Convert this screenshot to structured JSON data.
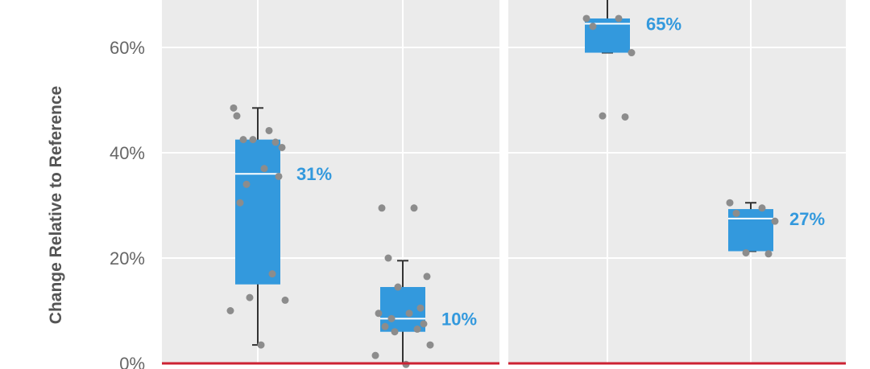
{
  "chart_data": {
    "type": "box",
    "ylabel": "Change Relative to Reference",
    "ylim": [
      0,
      70
    ],
    "yticks": [
      0,
      20,
      40,
      60
    ],
    "ytick_labels": [
      "0%",
      "20%",
      "40%",
      "60%"
    ],
    "grid": true,
    "reference_line": 0,
    "colors": {
      "box": "#3399DD",
      "median": "#FFFFFF",
      "whisker": "#333333",
      "point": "#8C8C8C",
      "label": "#3399DD",
      "reference": "#CC2233",
      "panel_bg": "#EBEBEB",
      "grid": "#FFFFFF"
    },
    "panels": [
      {
        "groups": [
          {
            "label": "31%",
            "q1": 15,
            "median": 36,
            "q3": 42.5,
            "whisker_low": 3.5,
            "whisker_high": 48.5,
            "points": [
              47,
              44.2,
              42.5,
              41,
              42.5,
              42,
              48.5,
              37,
              34,
              35.5,
              30.5,
              17,
              12.5,
              12,
              10,
              3.5
            ]
          },
          {
            "label": "10%",
            "q1": 6,
            "median": 8.5,
            "q3": 14.5,
            "whisker_low": 0,
            "whisker_high": 19.5,
            "points": [
              29.5,
              29.5,
              20,
              16.5,
              14.5,
              10.5,
              9.5,
              9.5,
              8.5,
              7.5,
              7,
              6.5,
              6,
              3.5,
              1.5,
              -0.2
            ]
          }
        ]
      },
      {
        "groups": [
          {
            "label": "65%",
            "q1": 59,
            "median": 64.5,
            "q3": 65.5,
            "whisker_low": 59,
            "whisker_high": 72,
            "points": [
              65.5,
              65.5,
              64,
              59,
              47,
              46.8
            ]
          },
          {
            "label": "27%",
            "q1": 21.3,
            "median": 27.5,
            "q3": 29.3,
            "whisker_low": 21.3,
            "whisker_high": 30.5,
            "points": [
              30.5,
              29.5,
              28.5,
              27,
              21,
              20.8
            ]
          }
        ]
      }
    ]
  }
}
